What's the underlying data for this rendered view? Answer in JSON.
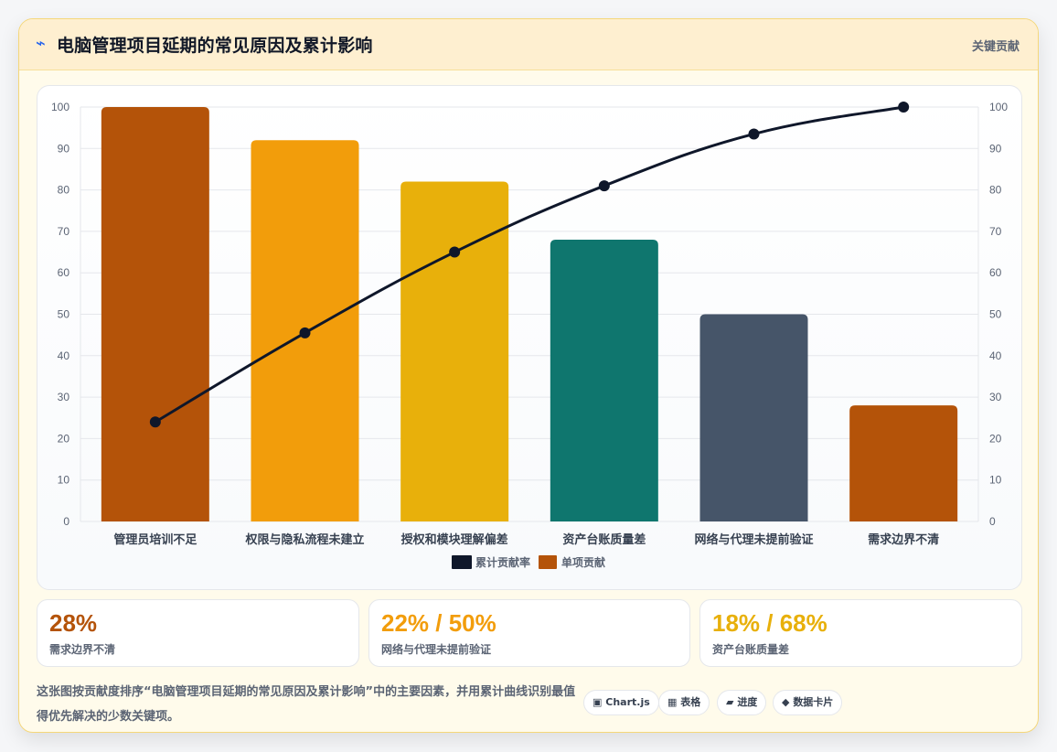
{
  "header": {
    "icon": "bolt-icon",
    "title": "电脑管理项目延期的常见原因及累计影响",
    "tag": "关键贡献"
  },
  "chart_data": {
    "type": "bar",
    "categories": [
      "管理员培训不足",
      "权限与隐私流程未建立",
      "授权和模块理解偏差",
      "资产台账质量差",
      "网络与代理未提前验证",
      "需求边界不清"
    ],
    "series": [
      {
        "name": "单项贡献",
        "type": "bar",
        "values": [
          100,
          92,
          82,
          68,
          50,
          28
        ],
        "colors": [
          "#b45309",
          "#f29d0b",
          "#e8b00b",
          "#0f766e",
          "#465569",
          "#b45309"
        ]
      },
      {
        "name": "累计贡献率",
        "type": "line",
        "values": [
          24,
          45.5,
          65,
          81,
          93.5,
          100
        ],
        "color": "#0f172a"
      }
    ],
    "ylim": [
      0,
      100
    ],
    "yticks": [
      0,
      10,
      20,
      30,
      40,
      50,
      60,
      70,
      80,
      90,
      100
    ],
    "y2lim": [
      0,
      100
    ],
    "legend": [
      "累计贡献率",
      "单项贡献"
    ],
    "legend_position": "bottom",
    "grid": true
  },
  "stats": [
    {
      "value": "28%",
      "label": "需求边界不清",
      "color": "#b45309"
    },
    {
      "value": "22% / 50%",
      "label": "网络与代理未提前验证",
      "color": "#f29d0b"
    },
    {
      "value": "18% / 68%",
      "label": "资产台账质量差",
      "color": "#e8b00b"
    }
  ],
  "footer": {
    "text": "这张图按贡献度排序“电脑管理项目延期的常见原因及累计影响”中的主要因素，并用累计曲线识别最值得优先解决的少数关键项。",
    "chips": [
      {
        "icon": "▣",
        "label": "Chart.js"
      },
      {
        "icon": "▦",
        "label": "表格"
      },
      {
        "icon": "▰",
        "label": "进度"
      },
      {
        "icon": "◆",
        "label": "数据卡片"
      }
    ]
  }
}
